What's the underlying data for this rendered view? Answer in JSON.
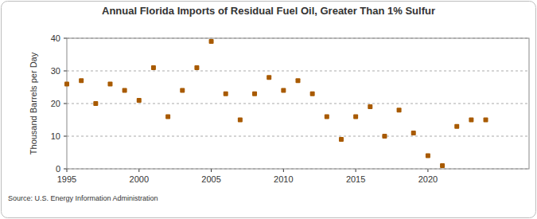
{
  "chart_data": {
    "type": "scatter",
    "title": "Annual Florida Imports of Residual Fuel Oil, Greater Than 1% Sulfur",
    "y_label": "Thousand Barrels per Day",
    "source": "Source: U.S. Energy Information Administration",
    "x": [
      1995,
      1996,
      1997,
      1998,
      1999,
      2000,
      2001,
      2002,
      2003,
      2004,
      2005,
      2006,
      2007,
      2008,
      2009,
      2010,
      2011,
      2012,
      2013,
      2014,
      2015,
      2016,
      2017,
      2018,
      2019,
      2020,
      2021,
      2022,
      2023,
      2024
    ],
    "values": [
      26,
      27,
      20,
      26,
      24,
      21,
      31,
      16,
      24,
      31,
      39,
      23,
      15,
      23,
      28,
      24,
      27,
      23,
      16,
      9,
      16,
      19,
      10,
      18,
      11,
      4,
      1,
      13,
      15,
      15
    ],
    "color": "#a85a00",
    "marker": "square",
    "xlim": [
      1995,
      2027
    ],
    "xticks": [
      1995,
      2000,
      2005,
      2010,
      2015,
      2020
    ],
    "ylim": [
      0,
      40
    ],
    "yticks": [
      0,
      10,
      20,
      30,
      40
    ],
    "grid": true
  }
}
